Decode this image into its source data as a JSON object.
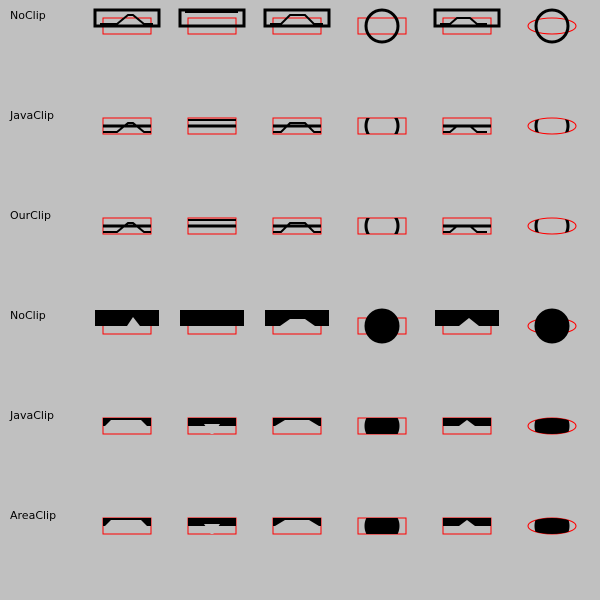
{
  "rows": [
    {
      "label": "NoClip",
      "fill": false,
      "clip": "none"
    },
    {
      "label": "JavaClip",
      "fill": false,
      "clip": "java"
    },
    {
      "label": "OurClip",
      "fill": false,
      "clip": "ours"
    },
    {
      "label": "NoClip",
      "fill": true,
      "clip": "none"
    },
    {
      "label": "JavaClip",
      "fill": true,
      "clip": "java"
    },
    {
      "label": "AreaClip",
      "fill": true,
      "clip": "area"
    }
  ],
  "columns": [
    {
      "shape": "zigzag-right-peak"
    },
    {
      "shape": "v-notch"
    },
    {
      "shape": "trapezoid-peak"
    },
    {
      "shape": "circle"
    },
    {
      "shape": "chevron-peak"
    },
    {
      "shape": "circle-in-ellipse"
    }
  ],
  "colors": {
    "background": "#c0c0c0",
    "shape": "#000000",
    "clip_outline": "#ff0000"
  }
}
